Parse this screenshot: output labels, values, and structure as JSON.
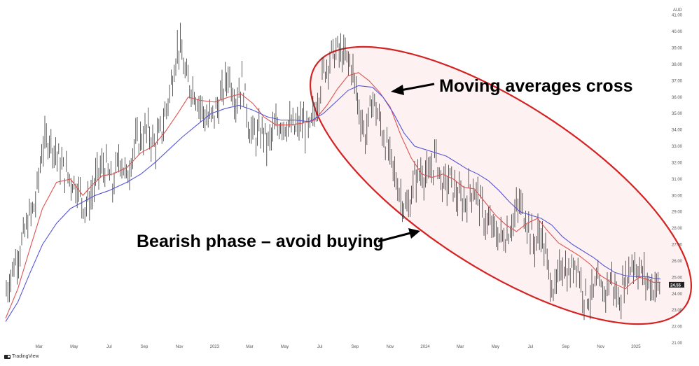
{
  "chart_data": {
    "type": "line",
    "currency": "AUD",
    "last_price_label": "24.55",
    "ylim": [
      21,
      41.5
    ],
    "y_ticks": [
      "21.00",
      "22.00",
      "23.00",
      "24.00",
      "25.00",
      "26.00",
      "27.00",
      "28.00",
      "29.00",
      "30.00",
      "31.00",
      "32.00",
      "33.00",
      "34.00",
      "35.00",
      "36.00",
      "37.00",
      "38.00",
      "39.00",
      "40.00",
      "41.00"
    ],
    "x_ticks": [
      "Mar",
      "May",
      "Jul",
      "Sep",
      "Nov",
      "2023",
      "Mar",
      "May",
      "Jul",
      "Sep",
      "Nov",
      "2024",
      "Mar",
      "May",
      "Jul",
      "Sep",
      "Nov",
      "2025"
    ],
    "x_tick_months": [
      2,
      4,
      6,
      8,
      10,
      12,
      14,
      16,
      18,
      20,
      22,
      24,
      26,
      28,
      30,
      32,
      34,
      36
    ],
    "x_range_months": [
      0.1,
      37.6
    ],
    "series": [
      {
        "key": "price",
        "style": "ohlc",
        "color": "#333333",
        "x": [
          0.1,
          0.5,
          1.0,
          1.4,
          1.8,
          2.2,
          2.6,
          3.0,
          3.4,
          3.8,
          4.2,
          4.6,
          5.0,
          5.4,
          5.8,
          6.2,
          6.6,
          7.0,
          7.4,
          7.8,
          8.2,
          8.6,
          9.0,
          9.4,
          9.8,
          10.0,
          10.4,
          10.8,
          11.2,
          11.6,
          12.0,
          12.4,
          12.8,
          13.2,
          13.6,
          14.0,
          14.4,
          14.8,
          15.0,
          15.4,
          15.8,
          16.2,
          16.6,
          17.0,
          17.4,
          17.8,
          18.2,
          18.6,
          19.0,
          19.4,
          19.8,
          20.2,
          20.6,
          21.0,
          21.4,
          21.8,
          22.2,
          22.6,
          23.0,
          23.4,
          23.8,
          24.2,
          24.6,
          25.0,
          25.4,
          25.8,
          26.2,
          26.6,
          27.0,
          27.4,
          27.8,
          28.2,
          28.6,
          29.0,
          29.4,
          29.8,
          30.2,
          30.6,
          31.0,
          31.4,
          31.8,
          32.2,
          32.6,
          33.0,
          33.4,
          33.8,
          34.2,
          34.6,
          35.0,
          35.4,
          35.8,
          36.2,
          36.6,
          37.0,
          37.4
        ],
        "y": [
          24.0,
          25.5,
          27.0,
          28.5,
          29.5,
          33.0,
          33.5,
          32.5,
          31.5,
          31.0,
          30.5,
          29.3,
          30.0,
          31.5,
          31.8,
          30.5,
          32.5,
          31.0,
          33.0,
          33.5,
          34.0,
          33.0,
          34.0,
          36.0,
          38.5,
          39.2,
          37.0,
          36.5,
          35.5,
          34.5,
          35.0,
          36.0,
          37.5,
          35.8,
          37.0,
          34.0,
          33.5,
          34.0,
          33.0,
          34.0,
          34.5,
          34.3,
          34.0,
          34.5,
          33.8,
          35.5,
          37.5,
          38.5,
          38.8,
          38.4,
          38.0,
          35.5,
          33.5,
          36.0,
          34.5,
          33.0,
          31.5,
          30.0,
          29.0,
          31.0,
          31.5,
          31.0,
          32.5,
          30.5,
          31.0,
          30.0,
          29.5,
          30.5,
          30.0,
          28.5,
          28.0,
          27.5,
          27.5,
          28.5,
          29.5,
          28.5,
          27.0,
          27.8,
          25.5,
          24.0,
          26.0,
          25.0,
          26.2,
          24.0,
          23.8,
          24.5,
          24.0,
          25.0,
          23.5,
          24.8,
          26.0,
          25.5,
          24.8,
          24.4,
          24.55
        ]
      },
      {
        "key": "ma_fast",
        "color": "#e05252",
        "x": [
          0.1,
          0.8,
          1.5,
          2.2,
          3.0,
          3.8,
          4.5,
          5.0,
          5.6,
          6.2,
          7.0,
          7.8,
          8.5,
          9.2,
          9.9,
          10.5,
          11.2,
          12.0,
          12.8,
          13.5,
          14.2,
          14.8,
          15.5,
          16.2,
          17.0,
          17.7,
          18.4,
          19.0,
          19.6,
          20.2,
          20.8,
          21.4,
          22.0,
          22.6,
          23.2,
          23.8,
          24.4,
          25.0,
          25.6,
          26.2,
          26.8,
          27.4,
          28.0,
          28.6,
          29.2,
          29.8,
          30.4,
          31.0,
          31.6,
          32.2,
          32.8,
          33.4,
          34.0,
          34.6,
          35.0,
          35.4,
          35.8,
          36.2,
          36.6,
          37.0,
          37.4
        ],
        "y": [
          22.5,
          24.3,
          26.8,
          29.2,
          30.8,
          31.0,
          30.0,
          30.6,
          31.2,
          31.3,
          31.7,
          32.6,
          33.0,
          33.9,
          35.0,
          36.0,
          35.8,
          35.7,
          36.0,
          36.2,
          35.6,
          34.8,
          34.3,
          34.3,
          34.4,
          34.6,
          35.5,
          36.5,
          37.3,
          37.5,
          37.0,
          36.3,
          35.4,
          33.7,
          32.3,
          31.3,
          31.1,
          31.3,
          31.0,
          30.5,
          30.4,
          29.6,
          28.8,
          28.2,
          27.8,
          28.3,
          28.6,
          27.8,
          27.1,
          26.7,
          26.3,
          25.8,
          25.1,
          24.7,
          24.5,
          24.3,
          24.7,
          25.0,
          24.9,
          24.7,
          24.7
        ]
      },
      {
        "key": "ma_slow",
        "color": "#5656d8",
        "x": [
          0.1,
          0.8,
          1.5,
          2.2,
          3.0,
          3.8,
          4.5,
          5.2,
          6.0,
          7.0,
          7.8,
          8.6,
          9.4,
          10.2,
          11.0,
          11.8,
          12.6,
          13.4,
          14.2,
          15.0,
          15.8,
          16.6,
          17.4,
          18.2,
          19.0,
          19.6,
          20.2,
          21.0,
          21.6,
          22.2,
          22.8,
          23.4,
          24.0,
          24.6,
          25.2,
          25.8,
          26.4,
          27.0,
          27.6,
          28.2,
          28.8,
          29.4,
          30.0,
          30.6,
          31.2,
          31.8,
          32.4,
          33.0,
          33.6,
          34.2,
          34.8,
          35.4,
          36.0,
          36.6,
          37.0,
          37.4
        ],
        "y": [
          22.3,
          23.5,
          25.3,
          27.0,
          28.3,
          29.2,
          29.6,
          30.0,
          30.3,
          30.8,
          31.3,
          32.0,
          32.8,
          33.6,
          34.3,
          35.0,
          35.3,
          35.5,
          35.2,
          34.8,
          34.6,
          34.6,
          34.5,
          35.0,
          35.8,
          36.4,
          36.7,
          36.6,
          36.0,
          35.0,
          33.8,
          33.0,
          32.8,
          32.6,
          32.4,
          32.0,
          31.6,
          31.3,
          30.9,
          30.3,
          29.6,
          29.0,
          28.8,
          28.6,
          28.2,
          27.5,
          27.0,
          26.6,
          26.2,
          25.7,
          25.3,
          25.1,
          25.05,
          25.05,
          24.95,
          24.9
        ]
      }
    ],
    "annotations": [
      {
        "key": "cross",
        "text": "Moving averages cross"
      },
      {
        "key": "bear",
        "text": "Bearish phase – avoid buying"
      }
    ],
    "highlight_ellipse": {
      "stroke": "#d42323",
      "fill": "#fdf1f1"
    }
  },
  "footer": {
    "brand": "TradingView"
  }
}
